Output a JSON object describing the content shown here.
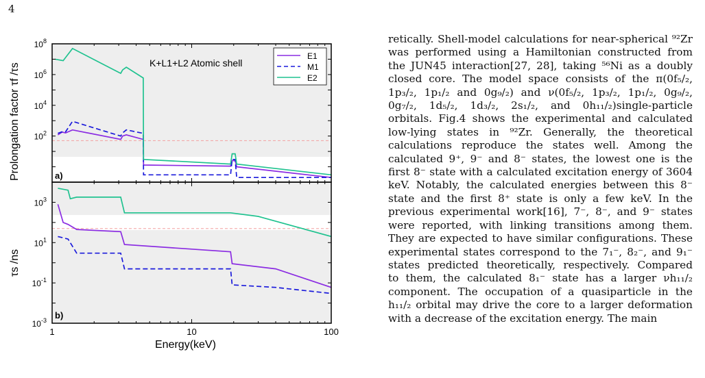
{
  "page_number": "4",
  "figure": {
    "panel_a_label": "a)",
    "panel_b_label": "b)",
    "annotation": "K+L1+L2 Atomic shell",
    "ylabel_a": "Prolongation factor  τf /τs",
    "ylabel_b": "τs /ns",
    "xlabel": "Energy(keV)",
    "legend": [
      "E1",
      "M1",
      "E2"
    ],
    "x_ticks": [
      "1",
      "10",
      "100"
    ],
    "y_ticks_a": [
      "10^8",
      "10^6",
      "10^4",
      "10^2"
    ],
    "y_ticks_b": [
      "10^3",
      "10^1",
      "10^-1",
      "10^-3"
    ],
    "colors": {
      "E1": "#8a2be2",
      "M1": "#1a1adb",
      "E2": "#1fc28f",
      "ref": "#f4a0a0",
      "shade": "#eeeeee"
    }
  },
  "chart_data": [
    {
      "type": "line",
      "title": "",
      "annotation": "K+L1+L2 Atomic shell",
      "xlabel": "Energy(keV)",
      "ylabel": "Prolongation factor τf/τs",
      "xscale": "log",
      "yscale": "log",
      "xlim": [
        1,
        100
      ],
      "ylim": [
        0.1,
        100000000
      ],
      "legend_position": "top-right",
      "reference_line_y": 50,
      "series": [
        {
          "name": "E1",
          "style": "solid",
          "points": [
            [
              1.1,
              120
            ],
            [
              1.18,
              180
            ],
            [
              1.25,
              160
            ],
            [
              1.4,
              250
            ],
            [
              3.1,
              60
            ],
            [
              3.2,
              100
            ],
            [
              3.4,
              120
            ],
            [
              4.5,
              60
            ],
            [
              4.52,
              1.3
            ],
            [
              19,
              1.1
            ],
            [
              19.5,
              2.5
            ],
            [
              20.5,
              2.5
            ],
            [
              21,
              1
            ],
            [
              100,
              0.2
            ]
          ]
        },
        {
          "name": "M1",
          "style": "dashed",
          "points": [
            [
              1.1,
              150
            ],
            [
              1.2,
              200
            ],
            [
              1.25,
              190
            ],
            [
              1.4,
              900
            ],
            [
              3.1,
              100
            ],
            [
              3.2,
              160
            ],
            [
              3.4,
              250
            ],
            [
              4.5,
              150
            ],
            [
              4.52,
              0.3
            ],
            [
              19,
              0.3
            ],
            [
              19.5,
              3
            ],
            [
              20.5,
              3
            ],
            [
              21,
              0.2
            ],
            [
              100,
              0.2
            ]
          ]
        },
        {
          "name": "E2",
          "style": "solid",
          "points": [
            [
              1.05,
              10000000
            ],
            [
              1.2,
              8000000
            ],
            [
              1.4,
              50000000
            ],
            [
              3.1,
              1200000
            ],
            [
              3.2,
              2000000
            ],
            [
              3.4,
              3000000
            ],
            [
              4.5,
              600000
            ],
            [
              4.52,
              3
            ],
            [
              19,
              1.5
            ],
            [
              19.5,
              7
            ],
            [
              20.5,
              7
            ],
            [
              21,
              1.5
            ],
            [
              100,
              0.3
            ]
          ]
        }
      ]
    },
    {
      "type": "line",
      "title": "",
      "xlabel": "Energy(keV)",
      "ylabel": "τs /ns",
      "xscale": "log",
      "yscale": "log",
      "xlim": [
        1,
        100
      ],
      "ylim": [
        0.001,
        10000
      ],
      "reference_line_y": 50,
      "series": [
        {
          "name": "E1",
          "style": "solid",
          "points": [
            [
              1.1,
              800
            ],
            [
              1.2,
              100
            ],
            [
              1.3,
              80
            ],
            [
              1.5,
              45
            ],
            [
              3.1,
              35
            ],
            [
              3.3,
              8
            ],
            [
              19,
              3.5
            ],
            [
              19.5,
              0.9
            ],
            [
              40,
              0.5
            ],
            [
              100,
              0.06
            ]
          ]
        },
        {
          "name": "M1",
          "style": "dashed",
          "points": [
            [
              1.1,
              20
            ],
            [
              1.3,
              15
            ],
            [
              1.5,
              3
            ],
            [
              3.1,
              3
            ],
            [
              3.3,
              0.5
            ],
            [
              19,
              0.5
            ],
            [
              19.5,
              0.08
            ],
            [
              40,
              0.06
            ],
            [
              100,
              0.03
            ]
          ]
        },
        {
          "name": "E2",
          "style": "solid",
          "points": [
            [
              1.1,
              5000
            ],
            [
              1.3,
              4000
            ],
            [
              1.35,
              1500
            ],
            [
              1.5,
              1800
            ],
            [
              3.1,
              1800
            ],
            [
              3.3,
              300
            ],
            [
              19,
              300
            ],
            [
              30,
              200
            ],
            [
              100,
              20
            ]
          ]
        }
      ]
    }
  ],
  "text_lines": [
    "retically. Shell-model calculations for near-spherical ⁹²Zr",
    "was performed using a Hamiltonian constructed from",
    "the JUN45 interaction[27, 28], taking ⁵⁶Ni as a doubly",
    "closed core. The model space consists of the π(0f₅/₂,",
    "1p₃/₂, 1p₁/₂ and 0g₉/₂) and ν(0f₅/₂, 1p₃/₂, 1p₁/₂, 0g₉/₂,",
    "0g₇/₂, 1d₅/₂, 1d₃/₂, 2s₁/₂, and 0h₁₁/₂)single-particle",
    "orbitals. Fig.4 shows the experimental and calculated",
    "low-lying states in ⁹²Zr. Generally, the theoretical",
    "calculations reproduce the states well. Among the",
    "calculated 9⁺, 9⁻ and 8⁻ states, the lowest one is the",
    "first 8⁻ state with a calculated excitation energy of 3604",
    "keV. Notably, the calculated energies between this 8⁻",
    "state and the first 8⁺ state is only a few keV. In the",
    "previous experimental work[16], 7⁻, 8⁻, and 9⁻ states",
    "were reported, with linking transitions among them.",
    "They are expected to have similar configurations. These",
    "experimental states correspond to the 7₁⁻, 8₂⁻, and 9₁⁻",
    "states predicted theoretically, respectively. Compared",
    "to them, the calculated 8₁⁻ state has a larger νh₁₁/₂",
    "component. The occupation of a quasiparticle in the",
    "h₁₁/₂ orbital may drive the core to a larger deformation",
    "with a decrease of the excitation energy. The main"
  ]
}
